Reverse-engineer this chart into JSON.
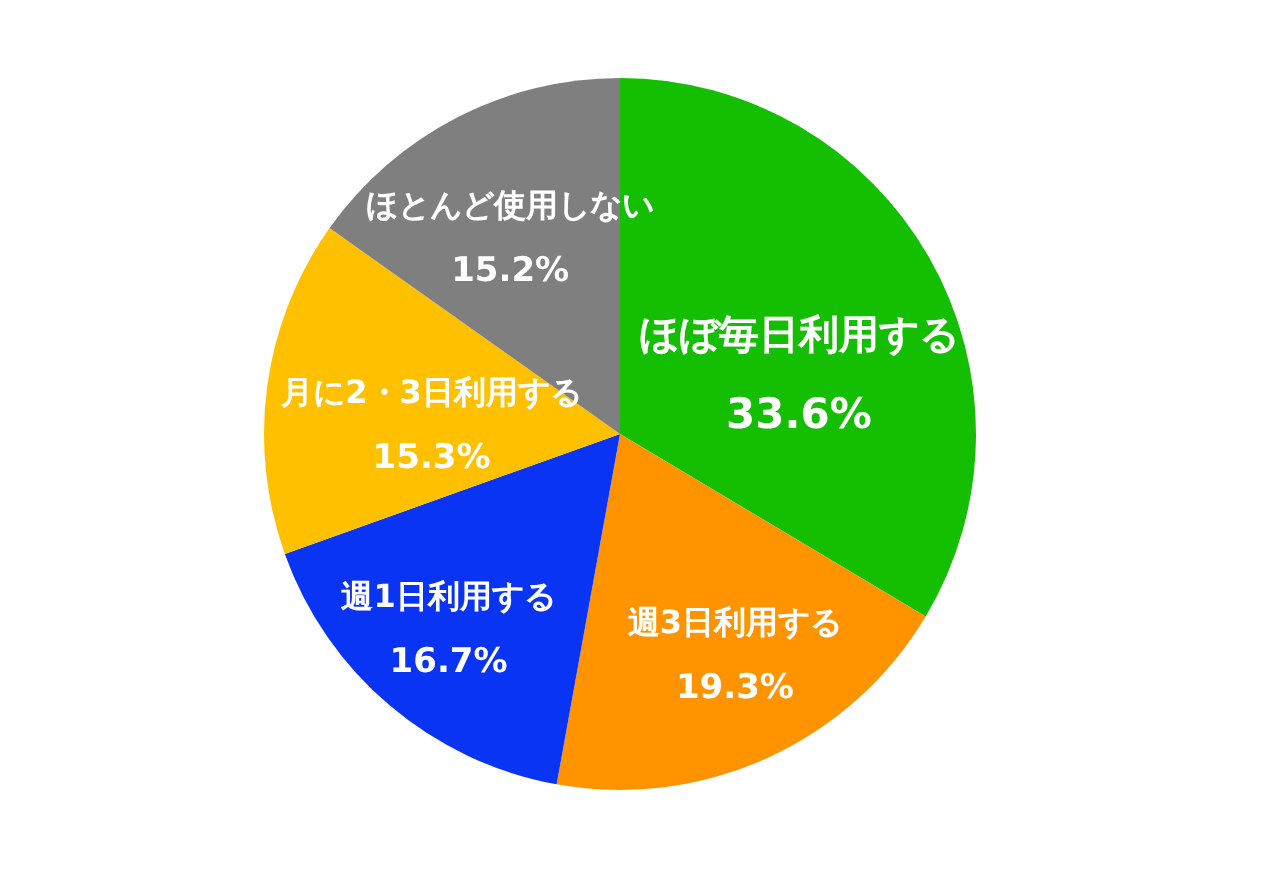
{
  "chart_data": {
    "type": "pie",
    "categories": [
      "ほぼ毎日利用する",
      "週3日利用する",
      "週1日利用する",
      "月に2・3日利用する",
      "ほとんど使用しない"
    ],
    "values": [
      33.6,
      19.3,
      16.7,
      15.3,
      15.2
    ],
    "value_labels": [
      "33.6%",
      "19.3%",
      "16.7%",
      "15.3%",
      "15.2%"
    ],
    "colors": [
      "#13bf00",
      "#ff9300",
      "#0a34f4",
      "#ffc000",
      "#7f7f7f"
    ],
    "legend": false
  }
}
